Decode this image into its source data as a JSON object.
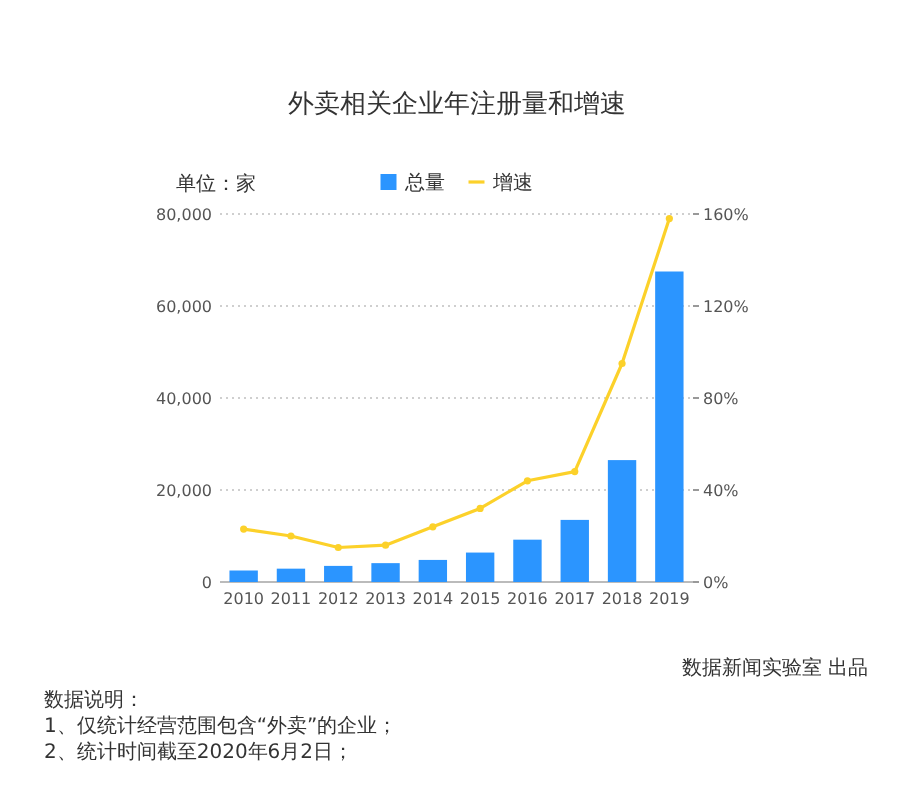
{
  "chart_data": {
    "type": "bar",
    "title": "外卖相关企业年注册量和增速",
    "ylabel": "单位：家",
    "categories": [
      "2010",
      "2011",
      "2012",
      "2013",
      "2014",
      "2015",
      "2016",
      "2017",
      "2018",
      "2019"
    ],
    "series": [
      {
        "name": "总量",
        "color": "#2b95ff",
        "values": [
          2500,
          2900,
          3500,
          4100,
          4800,
          6400,
          9200,
          13500,
          26500,
          67500
        ]
      },
      {
        "name": "增速",
        "type": "line",
        "axis": "y2",
        "color": "#fcd12a",
        "values": [
          23,
          20,
          15,
          16,
          24,
          32,
          44,
          48,
          95,
          158
        ]
      }
    ],
    "ylim": [
      0,
      80000
    ],
    "yticks": [
      0,
      {
        "value": 20000,
        "label": "20,000"
      },
      {
        "value": 40000,
        "label": "40,000"
      },
      {
        "value": 60000,
        "label": "60,000"
      },
      {
        "value": 80000,
        "label": "80,000"
      }
    ],
    "y2lim": [
      0,
      160
    ],
    "y2ticks": [
      {
        "value": 0,
        "label": "0%"
      },
      {
        "value": 40,
        "label": "40%"
      },
      {
        "value": 80,
        "label": "80%"
      },
      {
        "value": 120,
        "label": "120%"
      },
      {
        "value": 160,
        "label": "160%"
      }
    ],
    "grid": "y",
    "legend": "top",
    "marker": "circle",
    "annotations": [
      "数据新闻实验室 出品",
      "数据说明：",
      "1、仅统计经营范围包含“外卖”的企业；",
      "2、统计时间截至2020年6月2日；"
    ]
  }
}
